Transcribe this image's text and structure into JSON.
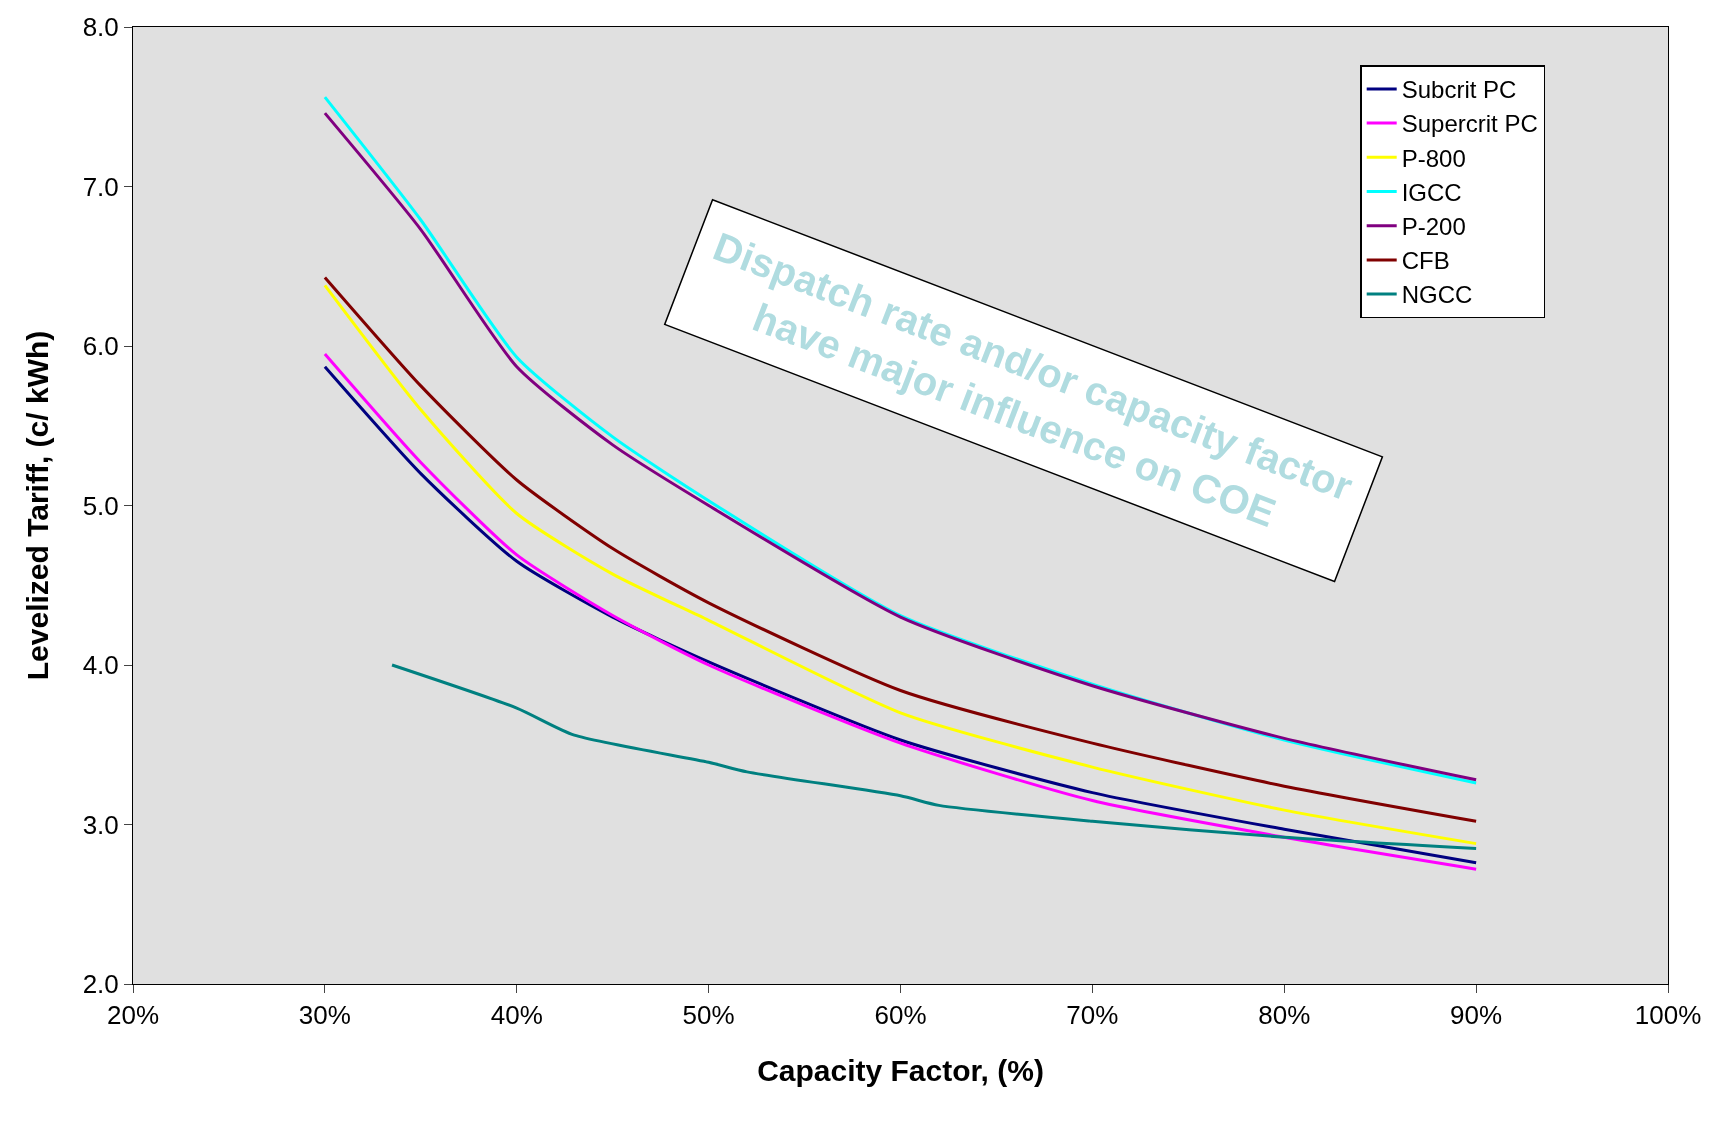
{
  "chart_data": {
    "type": "line",
    "xlabel": "Capacity Factor, (%)",
    "ylabel": "Levelized Tariff, (c/ kWh)",
    "xlim": [
      20,
      100
    ],
    "xticks": [
      {
        "value": 20,
        "label": "20%"
      },
      {
        "value": 30,
        "label": "30%"
      },
      {
        "value": 40,
        "label": "40%"
      },
      {
        "value": 50,
        "label": "50%"
      },
      {
        "value": 60,
        "label": "60%"
      },
      {
        "value": 70,
        "label": "70%"
      },
      {
        "value": 80,
        "label": "80%"
      },
      {
        "value": 90,
        "label": "90%"
      },
      {
        "value": 100,
        "label": "100%"
      }
    ],
    "ylim": [
      2,
      8
    ],
    "yticks": [
      {
        "value": 2,
        "label": "2.0"
      },
      {
        "value": 3,
        "label": "3.0"
      },
      {
        "value": 4,
        "label": "4.0"
      },
      {
        "value": 5,
        "label": "5.0"
      },
      {
        "value": 6,
        "label": "6.0"
      },
      {
        "value": 7,
        "label": "7.0"
      },
      {
        "value": 8,
        "label": "8.0"
      }
    ],
    "grid": false,
    "legend": "top right",
    "marker": "none",
    "line_style": "solid",
    "annotations": [
      "Dispatch rate and/or capacity factor have major influence on COE"
    ],
    "x": [
      30,
      35,
      40,
      45,
      50,
      60,
      70,
      80,
      90
    ],
    "series": [
      {
        "name": "Subcrit PC",
        "color": "#000080",
        "values": [
          5.87,
          5.2,
          4.65,
          4.3,
          4.02,
          3.53,
          3.2,
          2.97,
          2.76
        ]
      },
      {
        "name": "Supercrit PC",
        "color": "#ff00ff",
        "values": [
          5.95,
          5.27,
          4.69,
          4.31,
          4.0,
          3.51,
          3.15,
          2.92,
          2.72
        ]
      },
      {
        "name": "P-800",
        "color": "#ffff00",
        "values": [
          6.38,
          5.6,
          4.95,
          4.57,
          4.28,
          3.7,
          3.36,
          3.09,
          2.88
        ]
      },
      {
        "name": "IGCC",
        "color": "#00ffff",
        "values": [
          7.56,
          6.79,
          5.93,
          5.43,
          5.03,
          4.31,
          3.88,
          3.53,
          3.26
        ]
      },
      {
        "name": "P-200",
        "color": "#800080",
        "values": [
          7.46,
          6.73,
          5.87,
          5.38,
          5.0,
          4.3,
          3.87,
          3.54,
          3.28
        ]
      },
      {
        "name": "CFB",
        "color": "#800000",
        "values": [
          6.43,
          5.75,
          5.16,
          4.73,
          4.39,
          3.84,
          3.51,
          3.24,
          3.02
        ]
      },
      {
        "name": "NGCC",
        "color": "#008080",
        "x": [
          33.5,
          40,
          43,
          50,
          52,
          60,
          62,
          70,
          80,
          90
        ],
        "values": [
          4.0,
          3.73,
          3.56,
          3.39,
          3.33,
          3.18,
          3.12,
          3.02,
          2.92,
          2.85
        ]
      }
    ]
  }
}
